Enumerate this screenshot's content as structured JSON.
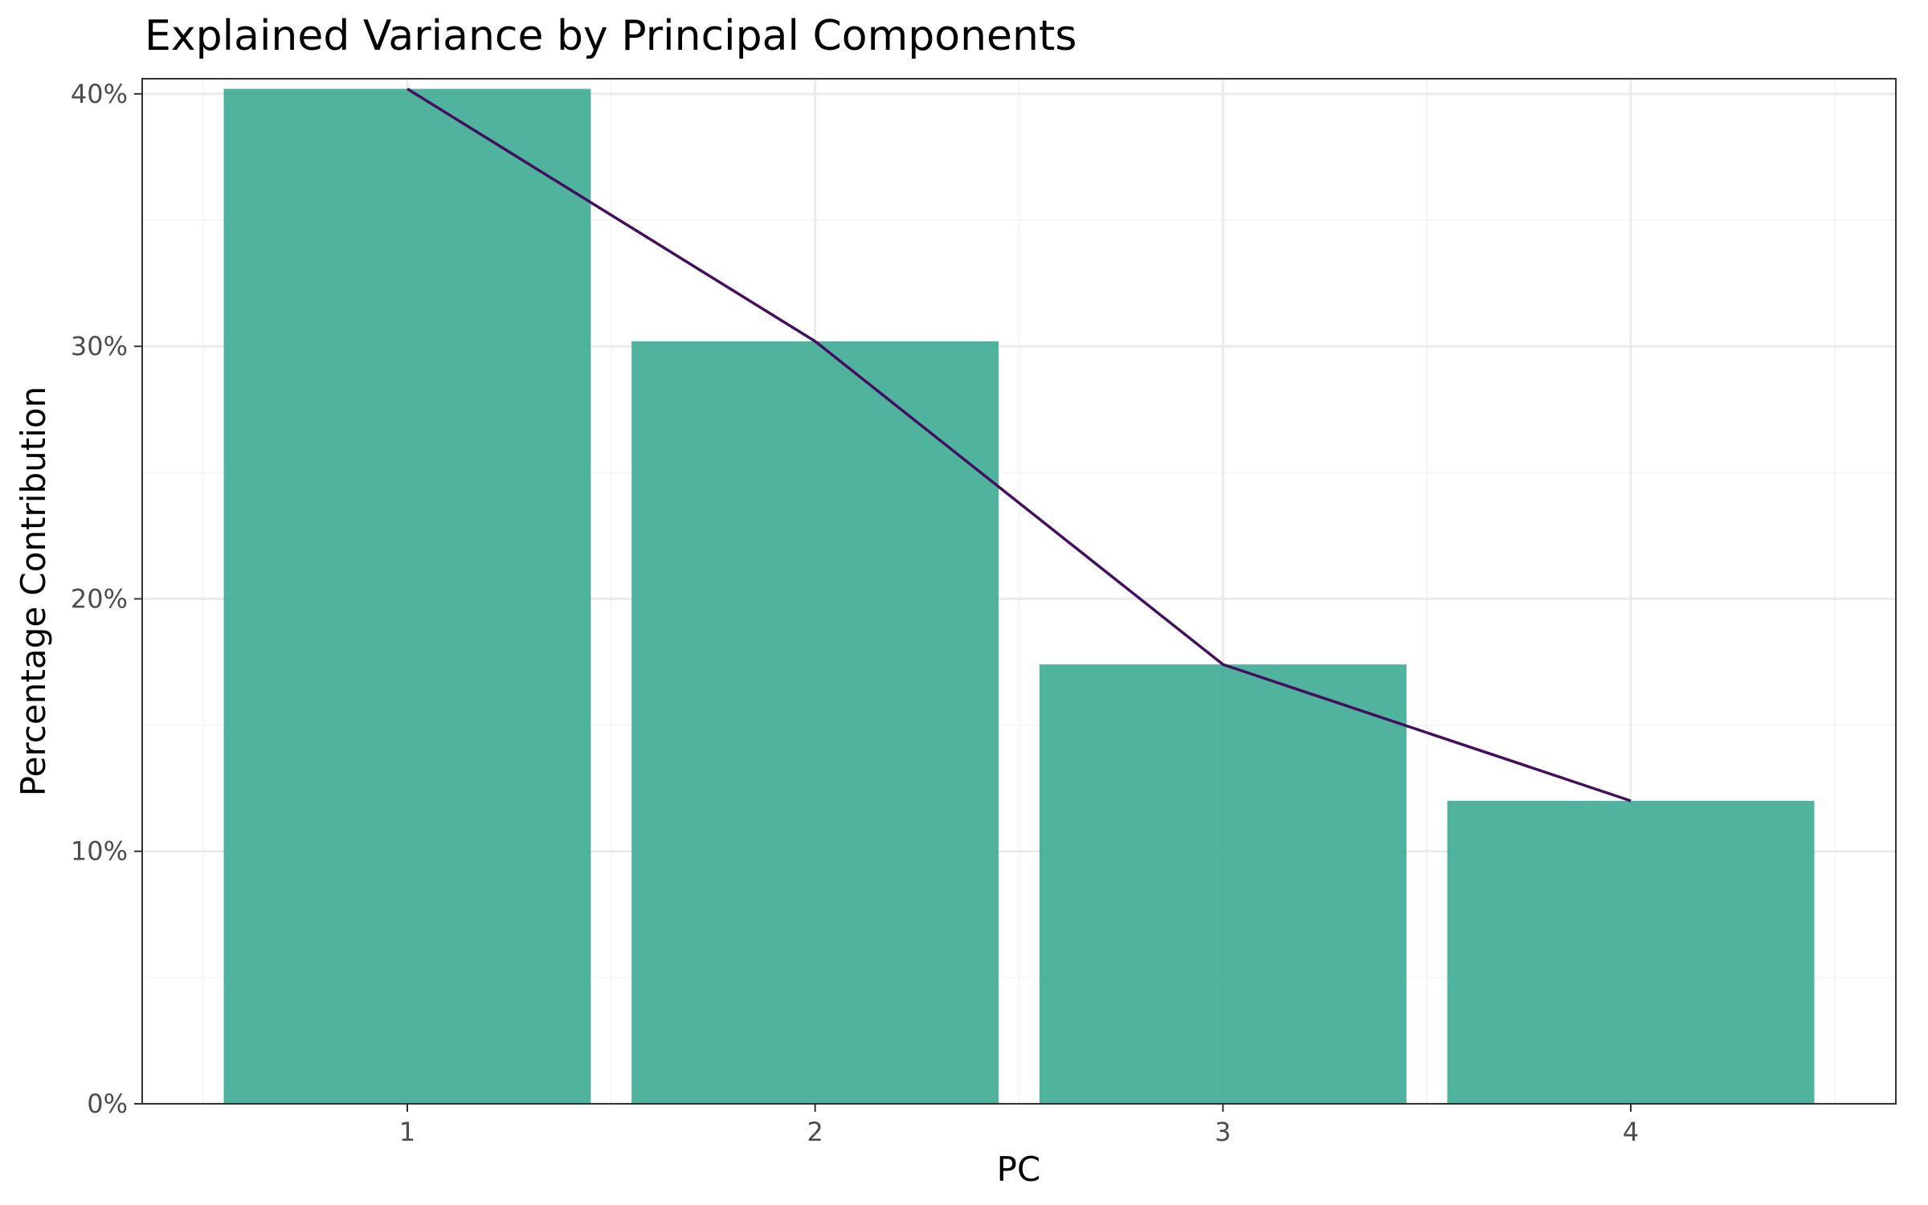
{
  "chart_data": {
    "type": "bar",
    "title": "Explained Variance by Principal Components",
    "xlabel": "PC",
    "ylabel": "Percentage Contribution",
    "categories": [
      "1",
      "2",
      "3",
      "4"
    ],
    "values": [
      40.2,
      30.2,
      17.4,
      12.0
    ],
    "line_values": [
      40.2,
      30.2,
      17.4,
      12.0
    ],
    "ylim": [
      0,
      40.6
    ],
    "yticks": [
      0,
      10,
      20,
      30,
      40
    ],
    "ytick_labels": [
      "0%",
      "10%",
      "20%",
      "30%",
      "40%"
    ],
    "grid": true,
    "legend": "none",
    "colors": {
      "bar": "#3dab94",
      "line": "#440f5e",
      "grid_major": "#ebebeb",
      "grid_minor": "#f4f4f4",
      "panel_border": "#333333"
    }
  }
}
